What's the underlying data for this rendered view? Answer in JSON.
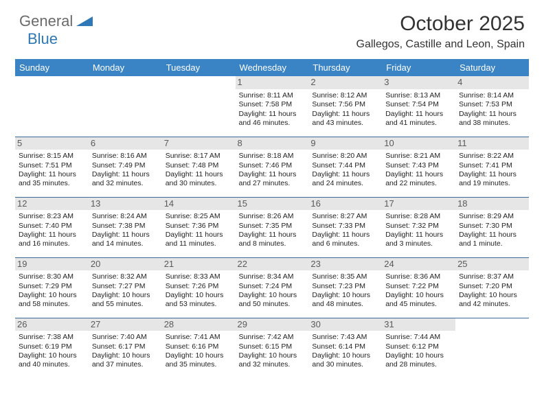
{
  "logo": {
    "general": "General",
    "blue": "Blue"
  },
  "title": "October 2025",
  "subtitle": "Gallegos, Castille and Leon, Spain",
  "colors": {
    "header_bg": "#3a84c5",
    "header_text": "#ffffff",
    "border": "#3a6a95",
    "daynum_bg": "#e6e6e6",
    "daynum_text": "#5a5a5a",
    "body_text": "#222222",
    "title_text": "#333333",
    "logo_gray": "#6a6a6a",
    "logo_blue": "#2f78b8"
  },
  "day_headers": [
    "Sunday",
    "Monday",
    "Tuesday",
    "Wednesday",
    "Thursday",
    "Friday",
    "Saturday"
  ],
  "weeks": [
    [
      {
        "n": "",
        "sr": "",
        "ss": "",
        "dl": ""
      },
      {
        "n": "",
        "sr": "",
        "ss": "",
        "dl": ""
      },
      {
        "n": "",
        "sr": "",
        "ss": "",
        "dl": ""
      },
      {
        "n": "1",
        "sr": "Sunrise: 8:11 AM",
        "ss": "Sunset: 7:58 PM",
        "dl": "Daylight: 11 hours and 46 minutes."
      },
      {
        "n": "2",
        "sr": "Sunrise: 8:12 AM",
        "ss": "Sunset: 7:56 PM",
        "dl": "Daylight: 11 hours and 43 minutes."
      },
      {
        "n": "3",
        "sr": "Sunrise: 8:13 AM",
        "ss": "Sunset: 7:54 PM",
        "dl": "Daylight: 11 hours and 41 minutes."
      },
      {
        "n": "4",
        "sr": "Sunrise: 8:14 AM",
        "ss": "Sunset: 7:53 PM",
        "dl": "Daylight: 11 hours and 38 minutes."
      }
    ],
    [
      {
        "n": "5",
        "sr": "Sunrise: 8:15 AM",
        "ss": "Sunset: 7:51 PM",
        "dl": "Daylight: 11 hours and 35 minutes."
      },
      {
        "n": "6",
        "sr": "Sunrise: 8:16 AM",
        "ss": "Sunset: 7:49 PM",
        "dl": "Daylight: 11 hours and 32 minutes."
      },
      {
        "n": "7",
        "sr": "Sunrise: 8:17 AM",
        "ss": "Sunset: 7:48 PM",
        "dl": "Daylight: 11 hours and 30 minutes."
      },
      {
        "n": "8",
        "sr": "Sunrise: 8:18 AM",
        "ss": "Sunset: 7:46 PM",
        "dl": "Daylight: 11 hours and 27 minutes."
      },
      {
        "n": "9",
        "sr": "Sunrise: 8:20 AM",
        "ss": "Sunset: 7:44 PM",
        "dl": "Daylight: 11 hours and 24 minutes."
      },
      {
        "n": "10",
        "sr": "Sunrise: 8:21 AM",
        "ss": "Sunset: 7:43 PM",
        "dl": "Daylight: 11 hours and 22 minutes."
      },
      {
        "n": "11",
        "sr": "Sunrise: 8:22 AM",
        "ss": "Sunset: 7:41 PM",
        "dl": "Daylight: 11 hours and 19 minutes."
      }
    ],
    [
      {
        "n": "12",
        "sr": "Sunrise: 8:23 AM",
        "ss": "Sunset: 7:40 PM",
        "dl": "Daylight: 11 hours and 16 minutes."
      },
      {
        "n": "13",
        "sr": "Sunrise: 8:24 AM",
        "ss": "Sunset: 7:38 PM",
        "dl": "Daylight: 11 hours and 14 minutes."
      },
      {
        "n": "14",
        "sr": "Sunrise: 8:25 AM",
        "ss": "Sunset: 7:36 PM",
        "dl": "Daylight: 11 hours and 11 minutes."
      },
      {
        "n": "15",
        "sr": "Sunrise: 8:26 AM",
        "ss": "Sunset: 7:35 PM",
        "dl": "Daylight: 11 hours and 8 minutes."
      },
      {
        "n": "16",
        "sr": "Sunrise: 8:27 AM",
        "ss": "Sunset: 7:33 PM",
        "dl": "Daylight: 11 hours and 6 minutes."
      },
      {
        "n": "17",
        "sr": "Sunrise: 8:28 AM",
        "ss": "Sunset: 7:32 PM",
        "dl": "Daylight: 11 hours and 3 minutes."
      },
      {
        "n": "18",
        "sr": "Sunrise: 8:29 AM",
        "ss": "Sunset: 7:30 PM",
        "dl": "Daylight: 11 hours and 1 minute."
      }
    ],
    [
      {
        "n": "19",
        "sr": "Sunrise: 8:30 AM",
        "ss": "Sunset: 7:29 PM",
        "dl": "Daylight: 10 hours and 58 minutes."
      },
      {
        "n": "20",
        "sr": "Sunrise: 8:32 AM",
        "ss": "Sunset: 7:27 PM",
        "dl": "Daylight: 10 hours and 55 minutes."
      },
      {
        "n": "21",
        "sr": "Sunrise: 8:33 AM",
        "ss": "Sunset: 7:26 PM",
        "dl": "Daylight: 10 hours and 53 minutes."
      },
      {
        "n": "22",
        "sr": "Sunrise: 8:34 AM",
        "ss": "Sunset: 7:24 PM",
        "dl": "Daylight: 10 hours and 50 minutes."
      },
      {
        "n": "23",
        "sr": "Sunrise: 8:35 AM",
        "ss": "Sunset: 7:23 PM",
        "dl": "Daylight: 10 hours and 48 minutes."
      },
      {
        "n": "24",
        "sr": "Sunrise: 8:36 AM",
        "ss": "Sunset: 7:22 PM",
        "dl": "Daylight: 10 hours and 45 minutes."
      },
      {
        "n": "25",
        "sr": "Sunrise: 8:37 AM",
        "ss": "Sunset: 7:20 PM",
        "dl": "Daylight: 10 hours and 42 minutes."
      }
    ],
    [
      {
        "n": "26",
        "sr": "Sunrise: 7:38 AM",
        "ss": "Sunset: 6:19 PM",
        "dl": "Daylight: 10 hours and 40 minutes."
      },
      {
        "n": "27",
        "sr": "Sunrise: 7:40 AM",
        "ss": "Sunset: 6:17 PM",
        "dl": "Daylight: 10 hours and 37 minutes."
      },
      {
        "n": "28",
        "sr": "Sunrise: 7:41 AM",
        "ss": "Sunset: 6:16 PM",
        "dl": "Daylight: 10 hours and 35 minutes."
      },
      {
        "n": "29",
        "sr": "Sunrise: 7:42 AM",
        "ss": "Sunset: 6:15 PM",
        "dl": "Daylight: 10 hours and 32 minutes."
      },
      {
        "n": "30",
        "sr": "Sunrise: 7:43 AM",
        "ss": "Sunset: 6:14 PM",
        "dl": "Daylight: 10 hours and 30 minutes."
      },
      {
        "n": "31",
        "sr": "Sunrise: 7:44 AM",
        "ss": "Sunset: 6:12 PM",
        "dl": "Daylight: 10 hours and 28 minutes."
      },
      {
        "n": "",
        "sr": "",
        "ss": "",
        "dl": ""
      }
    ]
  ]
}
